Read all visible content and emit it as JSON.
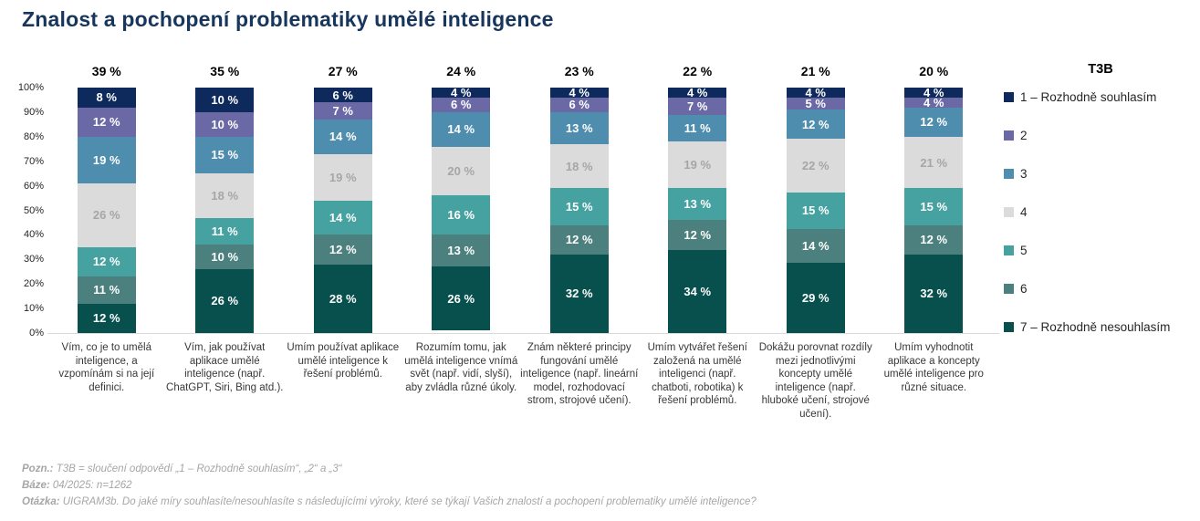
{
  "title": "Znalost a pochopení problematiky umělé inteligence",
  "chart_data": {
    "type": "bar",
    "stacked": true,
    "orientation": "vertical",
    "grid": false,
    "ylim": [
      0,
      100
    ],
    "value_suffix": " %",
    "y_ticks": [
      "100%",
      "90%",
      "80%",
      "70%",
      "60%",
      "50%",
      "40%",
      "30%",
      "20%",
      "10%",
      "0%"
    ],
    "legend_position": "right",
    "legend_title": "T3B",
    "t3b_values": [
      "39 %",
      "35 %",
      "27 %",
      "24 %",
      "23 %",
      "22 %",
      "21 %",
      "20 %"
    ],
    "categories": [
      "Vím, co je to umělá inteligence, a vzpomínám si na její definici.",
      "Vím, jak používat aplikace umělé inteligence (např. ChatGPT, Siri, Bing atd.).",
      "Umím používat aplikace umělé inteligence k řešení problémů.",
      "Rozumím tomu, jak umělá inteligence vnímá svět (např. vidí, slyší), aby zvládla různé úkoly.",
      "Znám některé principy fungování umělé inteligence (např. lineární model, rozhodovací strom, strojové učení).",
      "Umím vytvářet řešení založená na umělé inteligenci (např. chatboti, robotika) k řešení problémů.",
      "Dokážu porovnat rozdíly mezi jednotlivými koncepty umělé inteligence (např. hluboké učení, strojové učení).",
      "Umím vyhodnotit aplikace a koncepty umělé inteligence pro různé situace."
    ],
    "series": [
      {
        "name": "1 – Rozhodně souhlasím",
        "color": "#0E2A5C",
        "label_color": "#FFFFFF",
        "values": [
          8,
          10,
          6,
          4,
          4,
          4,
          4,
          4
        ]
      },
      {
        "name": "2",
        "color": "#6A69A5",
        "label_color": "#FFFFFF",
        "values": [
          12,
          10,
          7,
          6,
          6,
          7,
          5,
          4
        ]
      },
      {
        "name": "3",
        "color": "#4F8DAE",
        "label_color": "#FFFFFF",
        "values": [
          19,
          15,
          14,
          14,
          13,
          11,
          12,
          12
        ]
      },
      {
        "name": "4",
        "color": "#DBDBDB",
        "label_color": "#A6A6A6",
        "values": [
          26,
          18,
          19,
          20,
          18,
          19,
          22,
          21
        ]
      },
      {
        "name": "5",
        "color": "#45A2A0",
        "label_color": "#FFFFFF",
        "values": [
          12,
          11,
          14,
          16,
          15,
          13,
          15,
          15
        ]
      },
      {
        "name": "6",
        "color": "#4C807E",
        "label_color": "#FFFFFF",
        "values": [
          11,
          10,
          12,
          13,
          12,
          12,
          14,
          12
        ]
      },
      {
        "name": "7 – Rozhodně nesouhlasím",
        "color": "#07504D",
        "label_color": "#FFFFFF",
        "values": [
          12,
          26,
          28,
          26,
          32,
          34,
          29,
          32
        ]
      }
    ]
  },
  "footer": {
    "note_label": "Pozn.:",
    "note_text": "T3B = sloučení odpovědí „1 – Rozhodně souhlasím“, „2“ a „3“",
    "base_label": "Báze:",
    "base_text": "04/2025: n=1262",
    "question_label": "Otázka:",
    "question_text": "UIGRAM3b. Do jaké míry souhlasíte/nesouhlasíte s následujícími výroky, které se týkají Vašich znalostí a pochopení problematiky umělé inteligence?"
  },
  "colors": {
    "title": "#17365D",
    "axis_line": "#D9D9D9",
    "footer_text": "#A6A6A6"
  }
}
